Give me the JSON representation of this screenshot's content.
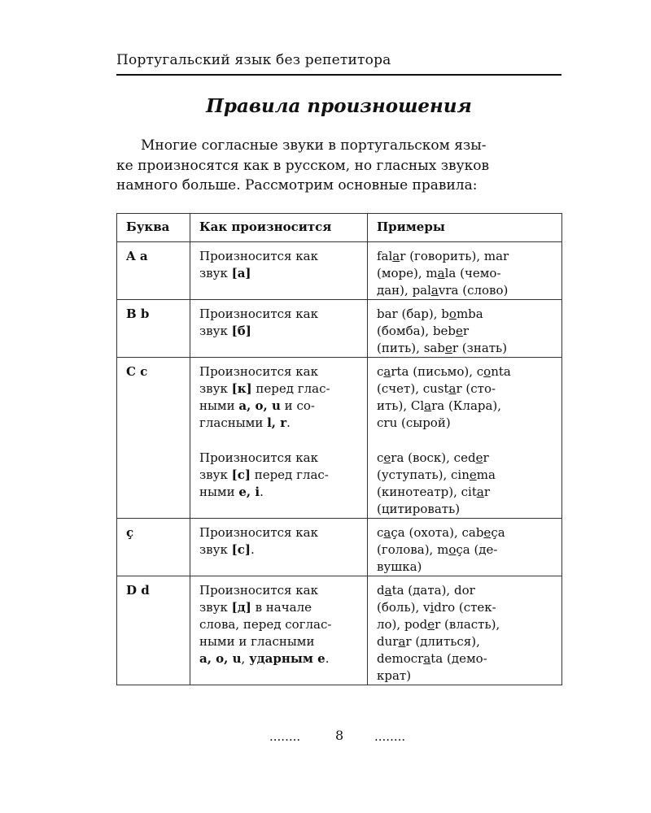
{
  "running_head": "Португальский язык без репетитора",
  "title": "Правила произношения",
  "intro_lines": [
    "Многие согласные звуки в португальском язы-",
    "ке произносятся как в русском, но гласных звуков",
    "намного больше. Рассмотрим основные правила:"
  ],
  "table": {
    "headers": [
      "Буква",
      "Как произносится",
      "Примеры"
    ],
    "rows": [
      {
        "letter": "A a",
        "height": 65,
        "how": [
          [
            [
              "Произносится как",
              ""
            ]
          ],
          [
            [
              "звук ",
              ""
            ],
            [
              "[а]",
              "b"
            ]
          ]
        ],
        "examples": [
          [
            [
              "fal",
              ""
            ],
            [
              "a",
              "u"
            ],
            [
              "r (говорить), mar",
              ""
            ]
          ],
          [
            [
              "(море), m",
              ""
            ],
            [
              "a",
              "u"
            ],
            [
              "la (чемо-",
              ""
            ]
          ],
          [
            [
              "дан), pal",
              ""
            ],
            [
              "a",
              "u"
            ],
            [
              "vra (слово)",
              ""
            ]
          ]
        ]
      },
      {
        "letter": "B b",
        "height": 67,
        "how": [
          [
            [
              "Произносится как",
              ""
            ]
          ],
          [
            [
              "звук ",
              ""
            ],
            [
              "[б]",
              "b"
            ]
          ]
        ],
        "examples": [
          [
            [
              "bar (бар), b",
              ""
            ],
            [
              "o",
              "u"
            ],
            [
              "mba",
              ""
            ]
          ],
          [
            [
              "(бомба), beb",
              ""
            ],
            [
              "e",
              "u"
            ],
            [
              "r",
              ""
            ]
          ],
          [
            [
              "(пить), sab",
              ""
            ],
            [
              "e",
              "u"
            ],
            [
              "r (знать)",
              ""
            ]
          ]
        ]
      },
      {
        "letter": "C c",
        "height": 182,
        "how": [
          [
            [
              "Произносится как",
              ""
            ]
          ],
          [
            [
              "звук ",
              ""
            ],
            [
              "[к]",
              "b"
            ],
            [
              " перед глас-",
              ""
            ]
          ],
          [
            [
              "ными ",
              ""
            ],
            [
              "a, o, u",
              "b"
            ],
            [
              " и со-",
              ""
            ]
          ],
          [
            [
              "гласными ",
              ""
            ],
            [
              "l, r",
              "b"
            ],
            [
              ".",
              ""
            ]
          ],
          "gap",
          [
            [
              "Произносится как",
              ""
            ]
          ],
          [
            [
              "звук ",
              ""
            ],
            [
              "[с]",
              "b"
            ],
            [
              " перед глас-",
              ""
            ]
          ],
          [
            [
              "ными ",
              ""
            ],
            [
              "e, i",
              "b"
            ],
            [
              ".",
              ""
            ]
          ]
        ],
        "examples": [
          [
            [
              "c",
              ""
            ],
            [
              "a",
              "u"
            ],
            [
              "rta (письмо), c",
              ""
            ],
            [
              "o",
              "u"
            ],
            [
              "nta",
              ""
            ]
          ],
          [
            [
              "(счет), cust",
              ""
            ],
            [
              "a",
              "u"
            ],
            [
              "r (сто-",
              ""
            ]
          ],
          [
            [
              "ить), Cl",
              ""
            ],
            [
              "a",
              "u"
            ],
            [
              "ra (Клара),",
              ""
            ]
          ],
          [
            [
              "cru (сырой)",
              ""
            ]
          ],
          "gap",
          [
            [
              "c",
              ""
            ],
            [
              "e",
              "u"
            ],
            [
              "ra (воск), ced",
              ""
            ],
            [
              "e",
              "u"
            ],
            [
              "r",
              ""
            ]
          ],
          [
            [
              "(уступать), cin",
              ""
            ],
            [
              "e",
              "u"
            ],
            [
              "ma",
              ""
            ]
          ],
          [
            [
              "(кинотеатр), cit",
              ""
            ],
            [
              "a",
              "u"
            ],
            [
              "r",
              ""
            ]
          ],
          [
            [
              "(цитировать)",
              ""
            ]
          ]
        ]
      },
      {
        "letter": "ç",
        "height": 68,
        "how": [
          [
            [
              "Произносится как",
              ""
            ]
          ],
          [
            [
              "звук ",
              ""
            ],
            [
              "[с]",
              "b"
            ],
            [
              ".",
              ""
            ]
          ]
        ],
        "examples": [
          [
            [
              "c",
              ""
            ],
            [
              "a",
              "u"
            ],
            [
              "ça (охота), cab",
              ""
            ],
            [
              "e",
              "u"
            ],
            [
              "ça",
              ""
            ]
          ],
          [
            [
              "(голова), m",
              ""
            ],
            [
              "o",
              "u"
            ],
            [
              "ça (де-",
              ""
            ]
          ],
          [
            [
              "вушка)",
              ""
            ]
          ]
        ]
      },
      {
        "letter": "D d",
        "height": 125,
        "how": [
          [
            [
              "Произносится как",
              ""
            ]
          ],
          [
            [
              "звук ",
              ""
            ],
            [
              "[д]",
              "b"
            ],
            [
              " в начале",
              ""
            ]
          ],
          [
            [
              "слова, перед соглас-",
              ""
            ]
          ],
          [
            [
              "ными и гласными",
              ""
            ]
          ],
          [
            [
              "a, o, u",
              "b"
            ],
            [
              ", ",
              ""
            ],
            [
              "ударным e",
              "b"
            ],
            [
              ".",
              ""
            ]
          ]
        ],
        "examples": [
          [
            [
              "d",
              ""
            ],
            [
              "a",
              "u"
            ],
            [
              "ta (дата), dor",
              ""
            ]
          ],
          [
            [
              "(боль), v",
              ""
            ],
            [
              "i",
              "u"
            ],
            [
              "dro (стек-",
              ""
            ]
          ],
          [
            [
              "ло), pod",
              ""
            ],
            [
              "e",
              "u"
            ],
            [
              "r (власть),",
              ""
            ]
          ],
          [
            [
              "dur",
              ""
            ],
            [
              "a",
              "u"
            ],
            [
              "r (длиться),",
              ""
            ]
          ],
          [
            [
              "democr",
              ""
            ],
            [
              "a",
              "u"
            ],
            [
              "ta (демо-",
              ""
            ]
          ],
          [
            [
              "крат)",
              ""
            ]
          ]
        ]
      }
    ]
  },
  "footer": {
    "left_dots": "........",
    "page_number": "8",
    "right_dots": "........"
  }
}
